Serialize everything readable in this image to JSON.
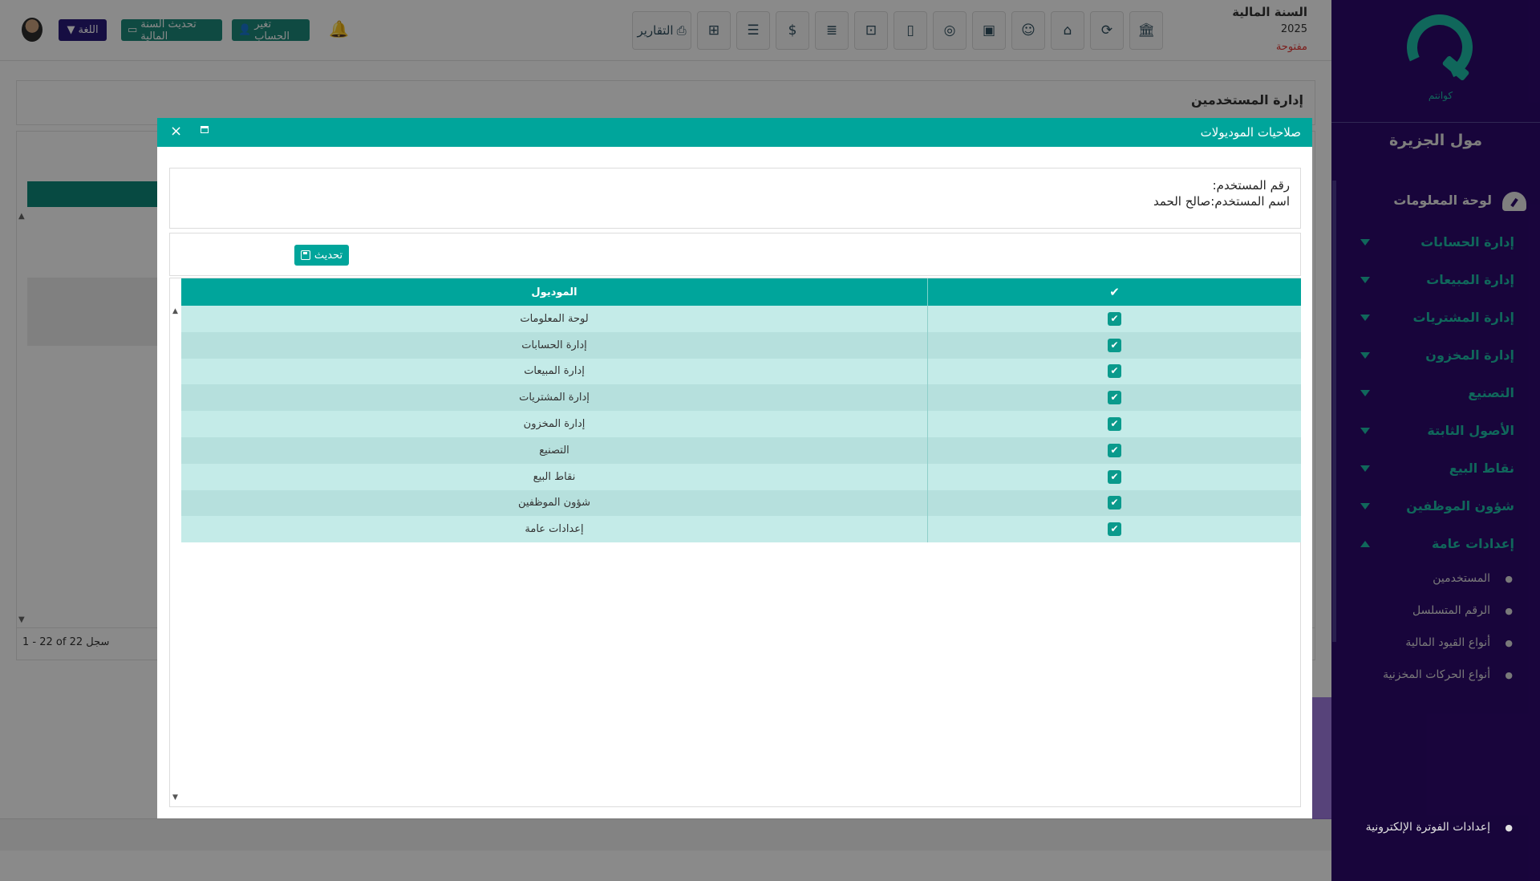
{
  "fiscal_year": {
    "title": "السنة المالية",
    "year": "2025",
    "status": "مفتوحة"
  },
  "toolbar": {
    "reports_label": "التقارير",
    "icons": [
      "bank-building-icon",
      "money-refresh-icon",
      "institution-icon",
      "user-contact-icon",
      "contact-book-icon",
      "coin-icon",
      "document-icon",
      "user-scan-icon",
      "list-icon",
      "dollar-icon",
      "list-alt-icon",
      "gift-icon"
    ]
  },
  "header": {
    "change_account_label": "تغير الحساب",
    "update_fiscal_year_label": "تحديث السنة المالية",
    "language_label": "اللغة"
  },
  "page": {
    "title": "إدارة المستخدمين",
    "pager": "1 - 22 of 22 سجل"
  },
  "sidebar": {
    "logo_text": "كوانتم",
    "company": "مول الجزيرة",
    "dashboard": "لوحة المعلومات",
    "items": [
      {
        "label": "إدارة الحسابات"
      },
      {
        "label": "إدارة المبيعات"
      },
      {
        "label": "إدارة المشتريات"
      },
      {
        "label": "إدارة المخزون"
      },
      {
        "label": "التصنيع"
      },
      {
        "label": "الأصول الثابتة"
      },
      {
        "label": "نقاط البيع"
      },
      {
        "label": "شؤون الموظفين"
      },
      {
        "label": "إعدادات عامة"
      }
    ],
    "sub_items": [
      {
        "label": "المستخدمين"
      },
      {
        "label": "الرقم المتسلسل"
      },
      {
        "label": "أنواع القيود المالية"
      },
      {
        "label": "أنواع الحركات المخزنية"
      }
    ],
    "einvoice": "إعدادات الفوترة الإلكترونية"
  },
  "modal": {
    "title": "صلاحيات الموديولات",
    "user_number_label": "رقم المستخدم:",
    "user_name_label": "اسم المستخدم:",
    "user_name_value": "صالح الحمد",
    "update_label": "تحديث",
    "columns": {
      "check": "✔",
      "module": "الموديول"
    },
    "rows": [
      {
        "module": "لوحة المعلومات",
        "checked": true
      },
      {
        "module": "إدارة الحسابات",
        "checked": true
      },
      {
        "module": "إدارة المبيعات",
        "checked": true
      },
      {
        "module": "إدارة المشتريات",
        "checked": true
      },
      {
        "module": "إدارة المخزون",
        "checked": true
      },
      {
        "module": "التصنيع",
        "checked": true
      },
      {
        "module": "نقاط البيع",
        "checked": true
      },
      {
        "module": "شؤون الموظفين",
        "checked": true
      },
      {
        "module": "إعدادات عامة",
        "checked": true
      }
    ]
  },
  "colors": {
    "teal": "#00a59b",
    "sidebar": "#2e0a6e",
    "accent": "#1fbfa8",
    "row_odd": "#c4ebe8",
    "row_even": "#b6e0dd"
  }
}
